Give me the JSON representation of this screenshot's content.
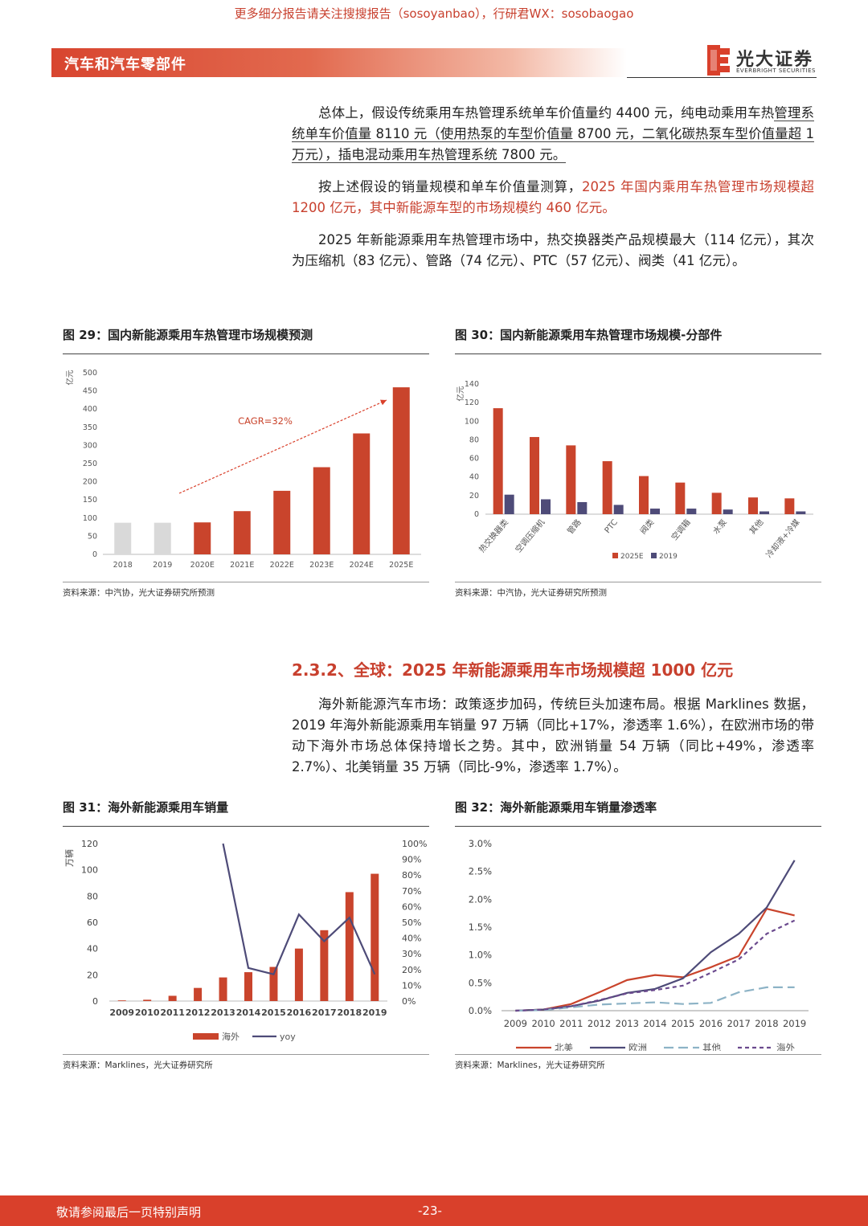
{
  "top_banner": "更多细分报告请关注搜搜报告（sosoyanbao），行研君WX：sosobaogao",
  "header": {
    "title": "汽车和汽车零部件",
    "logo_name": "光大证券",
    "logo_sub": "EVERBRIGHT SECURITIES",
    "brand_color": "#d9402b"
  },
  "paragraphs": {
    "p1_a": "总体上，假设传统乘用车热管理系统单车价值量约 4400 元，纯电动乘用车热",
    "p1_b": "管理系统单车价值量 8110 元（使用热泵的车型价值量 8700 元，二氧化碳热泵车",
    "p1_c": "型价值量超 1 万元），插电混动乘用车热管理系统 7800 元。",
    "p2_plain": "按上述假设的销量规模和单车价值量测算，",
    "p2_hl": "2025 年国内乘用车热管理市场规模超 1200 亿元，其中新能源车型的市场规模约 460 亿元。",
    "p3": "2025 年新能源乘用车热管理市场中，热交换器类产品规模最大（114 亿元），其次为压缩机（83 亿元）、管路（74 亿元）、PTC（57 亿元）、阀类（41 亿元）。",
    "p4": "海外新能源汽车市场：政策逐步加码，传统巨头加速布局。根据 Marklines 数据，2019 年海外新能源乘用车销量 97 万辆（同比+17%，渗透率 1.6%），在欧洲市场的带动下海外市场总体保持增长之势。其中，欧洲销量 54 万辆（同比+49%，渗透率 2.7%）、北美销量 35 万辆（同比-9%，渗透率 1.7%）。"
  },
  "section_heading": "2.3.2、全球：2025 年新能源乘用车市场规模超 1000 亿元",
  "figures": {
    "fig29": {
      "title": "图 29：国内新能源乘用车热管理市场规模预测",
      "source": "资料来源：中汽协，光大证券研究所预测"
    },
    "fig30": {
      "title": "图 30：国内新能源乘用车热管理市场规模-分部件",
      "source": "资料来源：中汽协，光大证券研究所预测"
    },
    "fig31": {
      "title": "图 31：海外新能源乘用车销量",
      "source": "资料来源：Marklines，光大证券研究所"
    },
    "fig32": {
      "title": "图 32：海外新能源乘用车销量渗透率",
      "source": "资料来源：Marklines，光大证券研究所"
    }
  },
  "footer": {
    "disclaimer": "敬请参阅最后一页特别声明",
    "page": "-23-"
  },
  "chart_data": [
    {
      "id": "fig29",
      "type": "bar",
      "ylabel": "亿元",
      "ylim": [
        0,
        500
      ],
      "yticks": [
        0,
        50,
        100,
        150,
        200,
        250,
        300,
        350,
        400,
        450,
        500
      ],
      "categories": [
        "2018",
        "2019",
        "2020E",
        "2021E",
        "2022E",
        "2023E",
        "2024E",
        "2025E"
      ],
      "values": [
        87,
        87,
        88,
        119,
        175,
        240,
        333,
        460
      ],
      "colors": [
        "#d9d9d9",
        "#d9d9d9",
        "#c9442c",
        "#c9442c",
        "#c9442c",
        "#c9442c",
        "#c9442c",
        "#c9442c"
      ],
      "annotation": "CAGR=32%"
    },
    {
      "id": "fig30",
      "type": "bar",
      "ylabel": "亿元",
      "ylim": [
        0,
        140
      ],
      "yticks": [
        0,
        20,
        40,
        60,
        80,
        100,
        120,
        140
      ],
      "categories": [
        "热交换器类",
        "空调压缩机",
        "管路",
        "PTC",
        "阀类",
        "空调箱",
        "水泵",
        "其他",
        "冷却液+冷媒"
      ],
      "series": [
        {
          "name": "2025E",
          "color": "#c9442c",
          "values": [
            114,
            83,
            74,
            57,
            41,
            34,
            23,
            18,
            17
          ]
        },
        {
          "name": "2019",
          "color": "#4e4b78",
          "values": [
            21,
            16,
            13,
            10,
            6,
            6,
            5,
            3,
            3
          ]
        }
      ]
    },
    {
      "id": "fig31",
      "type": "bar",
      "ylabel": "万辆",
      "ylim": [
        0,
        120
      ],
      "yticks": [
        0,
        20,
        40,
        60,
        80,
        100,
        120
      ],
      "y2lim": [
        0,
        1.0
      ],
      "y2ticks": [
        "0%",
        "10%",
        "20%",
        "30%",
        "40%",
        "50%",
        "60%",
        "70%",
        "80%",
        "90%",
        "100%"
      ],
      "categories": [
        "2009",
        "2010",
        "2011",
        "2012",
        "2013",
        "2014",
        "2015",
        "2016",
        "2017",
        "2018",
        "2019"
      ],
      "series": [
        {
          "name": "海外",
          "kind": "bar",
          "color": "#c9442c",
          "values": [
            0.5,
            1,
            4,
            10,
            18,
            22,
            26,
            40,
            54,
            83,
            97
          ]
        },
        {
          "name": "yoy",
          "kind": "line",
          "color": "#4e4b78",
          "values": [
            null,
            null,
            null,
            null,
            1.0,
            0.21,
            0.17,
            0.55,
            0.38,
            0.53,
            0.17
          ]
        }
      ]
    },
    {
      "id": "fig32",
      "type": "line",
      "ylim": [
        0,
        0.03
      ],
      "yticks": [
        "0.0%",
        "0.5%",
        "1.0%",
        "1.5%",
        "2.0%",
        "2.5%",
        "3.0%"
      ],
      "categories": [
        "2009",
        "2010",
        "2011",
        "2012",
        "2013",
        "2014",
        "2015",
        "2016",
        "2017",
        "2018",
        "2019"
      ],
      "series": [
        {
          "name": "北美",
          "color": "#c9442c",
          "dash": "",
          "values": [
            0.0,
            0.0002,
            0.0012,
            0.0033,
            0.0055,
            0.0064,
            0.006,
            0.0078,
            0.0098,
            0.0183,
            0.0171
          ]
        },
        {
          "name": "欧洲",
          "color": "#4e4b78",
          "dash": "",
          "values": [
            0.0,
            0.0002,
            0.0008,
            0.0018,
            0.0032,
            0.0039,
            0.0058,
            0.0105,
            0.0138,
            0.0185,
            0.027
          ]
        },
        {
          "name": "其他",
          "color": "#8db3c6",
          "dash": "12,6",
          "values": [
            0.0,
            0.0001,
            0.0006,
            0.0011,
            0.0013,
            0.0015,
            0.0012,
            0.0014,
            0.0033,
            0.0042,
            0.0042
          ]
        },
        {
          "name": "海外",
          "color": "#6b4a8e",
          "dash": "5,4",
          "values": [
            0.0,
            0.0002,
            0.0008,
            0.0019,
            0.0031,
            0.0037,
            0.0045,
            0.0068,
            0.0092,
            0.0138,
            0.0162
          ]
        }
      ]
    }
  ]
}
